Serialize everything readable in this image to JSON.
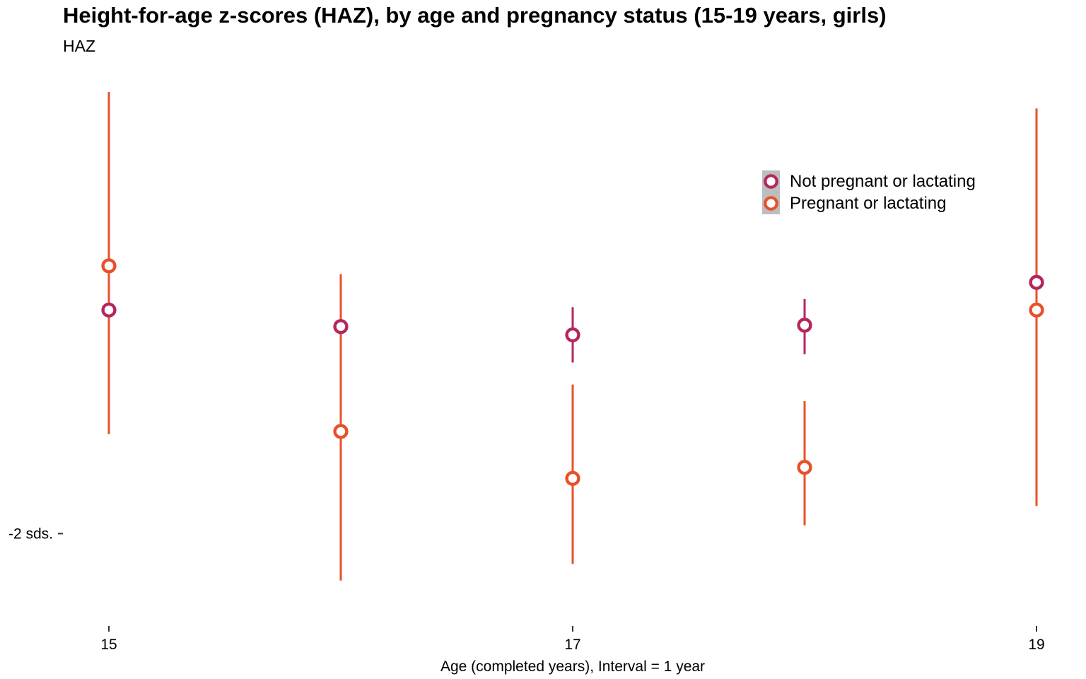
{
  "chart_data": {
    "type": "scatter",
    "title": "Height-for-age z-scores (HAZ), by age and pregnancy status (15-19 years, girls)",
    "subtitle": "HAZ",
    "xlabel": "Age (completed years), Interval = 1 year",
    "ylabel": "",
    "x_ticks": [
      "15",
      "17",
      "19"
    ],
    "y_ticks": [
      {
        "value": -2,
        "label": "-2 sds."
      }
    ],
    "xlim": [
      14.8,
      19.0
    ],
    "ylim": [
      -2.25,
      -0.4
    ],
    "grid": false,
    "legend_position": "top-right",
    "series": [
      {
        "name": "Not pregnant or lactating",
        "color": "#b5255f",
        "points": [
          {
            "x": 15,
            "y": -1.19,
            "low": -1.27,
            "high": -1.11
          },
          {
            "x": 16,
            "y": -1.25,
            "low": -1.34,
            "high": -1.16
          },
          {
            "x": 17,
            "y": -1.28,
            "low": -1.38,
            "high": -1.18
          },
          {
            "x": 18,
            "y": -1.245,
            "low": -1.35,
            "high": -1.15
          },
          {
            "x": 19,
            "y": -1.09,
            "low": -1.36,
            "high": -0.82
          }
        ]
      },
      {
        "name": "Pregnant or lactating",
        "color": "#e8502a",
        "points": [
          {
            "x": 15,
            "y": -1.03,
            "low": -1.64,
            "high": -0.4
          },
          {
            "x": 16,
            "y": -1.63,
            "low": -2.17,
            "high": -1.06
          },
          {
            "x": 17,
            "y": -1.8,
            "low": -2.11,
            "high": -1.46
          },
          {
            "x": 18,
            "y": -1.76,
            "low": -1.97,
            "high": -1.52
          },
          {
            "x": 19,
            "y": -1.19,
            "low": -1.9,
            "high": -0.46
          }
        ]
      }
    ]
  }
}
